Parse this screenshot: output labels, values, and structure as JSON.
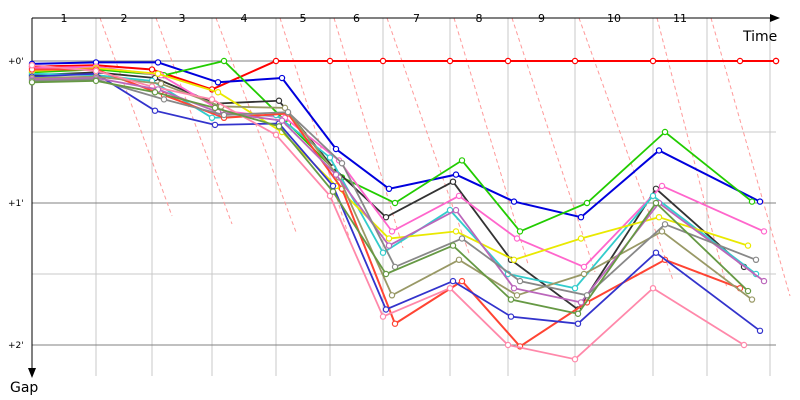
{
  "chart_data": {
    "type": "line",
    "title": "",
    "xlabel": "Time",
    "ylabel": "Gap",
    "x_ticks": [
      "1",
      "2",
      "3",
      "4",
      "5",
      "6",
      "7",
      "8",
      "9",
      "10",
      "11"
    ],
    "y_ticks": [
      "+0'",
      "+1'",
      "+2'"
    ],
    "ylim": [
      0,
      2.2
    ],
    "y_inverted": true,
    "grid": true,
    "legend": "none",
    "colors": {
      "leader": "#ff0000",
      "grid_major": "#808080",
      "grid_minor": "#c8c8c8",
      "lap_line": "#ff9a9a"
    },
    "x": [
      0,
      1,
      2,
      3,
      4,
      5,
      6,
      7,
      8,
      9,
      10,
      11,
      12,
      13
    ],
    "series": [
      {
        "color": "#ff0000",
        "values": [
          0.04,
          0.03,
          0.06,
          0.2,
          0.0,
          0.0,
          0.0,
          0.0,
          0.0,
          0.0,
          0.0,
          0.0,
          0.0,
          0.0
        ]
      },
      {
        "color": "#0000dd",
        "values": [
          0.02,
          0.01,
          0.01,
          0.15,
          0.12,
          0.62,
          0.9,
          0.8,
          0.99,
          1.1,
          0.63,
          0.99,
          null,
          null
        ]
      },
      {
        "color": "#22cc00",
        "values": [
          0.08,
          0.06,
          0.1,
          0.0,
          0.44,
          0.82,
          1.0,
          0.7,
          1.2,
          1.0,
          0.5,
          0.99,
          null,
          null
        ]
      },
      {
        "color": "#333333",
        "values": [
          0.1,
          0.08,
          0.12,
          0.3,
          0.28,
          0.75,
          1.1,
          0.85,
          1.4,
          1.75,
          0.9,
          1.45,
          null,
          null
        ]
      },
      {
        "color": "#ff66cc",
        "values": [
          0.05,
          0.04,
          0.1,
          0.35,
          0.4,
          0.7,
          1.2,
          0.95,
          1.25,
          1.45,
          0.88,
          1.2,
          null,
          null
        ]
      },
      {
        "color": "#33cccc",
        "values": [
          0.09,
          0.1,
          0.14,
          0.4,
          0.38,
          0.68,
          1.35,
          1.05,
          1.5,
          1.6,
          0.95,
          1.5,
          null,
          null
        ]
      },
      {
        "color": "#e9e900",
        "values": [
          0.07,
          0.05,
          0.09,
          0.22,
          0.5,
          0.88,
          1.25,
          1.2,
          1.4,
          1.25,
          1.1,
          1.3,
          null,
          null
        ]
      },
      {
        "color": "#ff4433",
        "values": [
          0.06,
          0.06,
          0.24,
          0.4,
          0.37,
          0.9,
          1.85,
          1.55,
          2.01,
          1.7,
          1.4,
          1.6,
          null,
          null
        ]
      },
      {
        "color": "#3333cc",
        "values": [
          0.11,
          0.09,
          0.35,
          0.45,
          0.44,
          0.88,
          1.75,
          1.55,
          1.8,
          1.85,
          1.35,
          1.9,
          null,
          null
        ]
      },
      {
        "color": "#999966",
        "values": [
          0.12,
          0.11,
          0.16,
          0.32,
          0.33,
          0.82,
          1.65,
          1.4,
          1.65,
          1.5,
          1.2,
          1.68,
          null,
          null
        ]
      },
      {
        "color": "#ff88aa",
        "values": [
          0.03,
          0.07,
          0.18,
          0.27,
          0.52,
          0.95,
          1.8,
          1.6,
          2.0,
          2.1,
          1.6,
          2.0,
          null,
          null
        ]
      },
      {
        "color": "#bb66bb",
        "values": [
          0.13,
          0.12,
          0.2,
          0.36,
          0.42,
          0.8,
          1.3,
          1.05,
          1.6,
          1.7,
          1.0,
          1.55,
          null,
          null
        ]
      },
      {
        "color": "#888888",
        "values": [
          0.14,
          0.13,
          0.27,
          0.38,
          0.36,
          0.72,
          1.45,
          1.25,
          1.55,
          1.65,
          1.15,
          1.4,
          null,
          null
        ]
      },
      {
        "color": "#669944",
        "values": [
          0.15,
          0.14,
          0.22,
          0.33,
          0.46,
          0.92,
          1.5,
          1.3,
          1.68,
          1.78,
          1.0,
          1.62,
          null,
          null
        ]
      }
    ]
  }
}
